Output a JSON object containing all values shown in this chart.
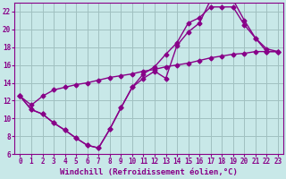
{
  "background_color": "#c8e8e8",
  "grid_color": "#a0c0c0",
  "line_color": "#880088",
  "marker": "D",
  "marker_size": 2.5,
  "line_width": 1.0,
  "xlabel": "Windchill (Refroidissement éolien,°C)",
  "xlabel_fontsize": 6.5,
  "tick_fontsize": 5.5,
  "xlim": [
    -0.5,
    23.5
  ],
  "ylim": [
    6,
    23
  ],
  "xticks": [
    0,
    1,
    2,
    3,
    4,
    5,
    6,
    7,
    8,
    9,
    10,
    11,
    12,
    13,
    14,
    15,
    16,
    17,
    18,
    19,
    20,
    21,
    22,
    23
  ],
  "yticks": [
    6,
    8,
    10,
    12,
    14,
    16,
    18,
    20,
    22
  ],
  "line1_x": [
    0,
    1,
    2,
    3,
    4,
    5,
    6,
    7,
    8,
    9,
    10,
    11,
    12,
    13,
    14,
    15,
    16,
    17,
    18,
    19,
    20,
    21,
    22,
    23
  ],
  "line1_y": [
    12.5,
    11.0,
    10.5,
    9.5,
    8.7,
    7.8,
    7.0,
    6.7,
    8.8,
    11.2,
    13.5,
    14.5,
    15.3,
    14.5,
    18.2,
    19.7,
    20.7,
    23.3,
    23.5,
    23.3,
    21.0,
    19.0,
    17.5,
    17.5
  ],
  "line2_x": [
    0,
    1,
    2,
    3,
    4,
    5,
    6,
    7,
    8,
    9,
    10,
    11,
    12,
    13,
    14,
    15,
    16,
    17,
    18,
    19,
    20,
    21,
    22,
    23
  ],
  "line2_y": [
    12.5,
    11.0,
    10.5,
    9.5,
    8.7,
    7.8,
    7.0,
    6.7,
    8.8,
    11.2,
    13.5,
    15.0,
    15.8,
    17.2,
    18.5,
    20.7,
    21.3,
    22.5,
    22.5,
    22.5,
    20.5,
    19.0,
    17.8,
    17.5
  ],
  "line3_x": [
    0,
    1,
    2,
    3,
    4,
    5,
    6,
    7,
    8,
    9,
    10,
    11,
    12,
    13,
    14,
    15,
    16,
    17,
    18,
    19,
    20,
    21,
    22,
    23
  ],
  "line3_y": [
    12.5,
    11.5,
    12.5,
    13.2,
    13.5,
    13.8,
    14.0,
    14.3,
    14.6,
    14.8,
    15.0,
    15.3,
    15.5,
    15.8,
    16.0,
    16.2,
    16.5,
    16.8,
    17.0,
    17.2,
    17.3,
    17.5,
    17.5,
    17.5
  ]
}
